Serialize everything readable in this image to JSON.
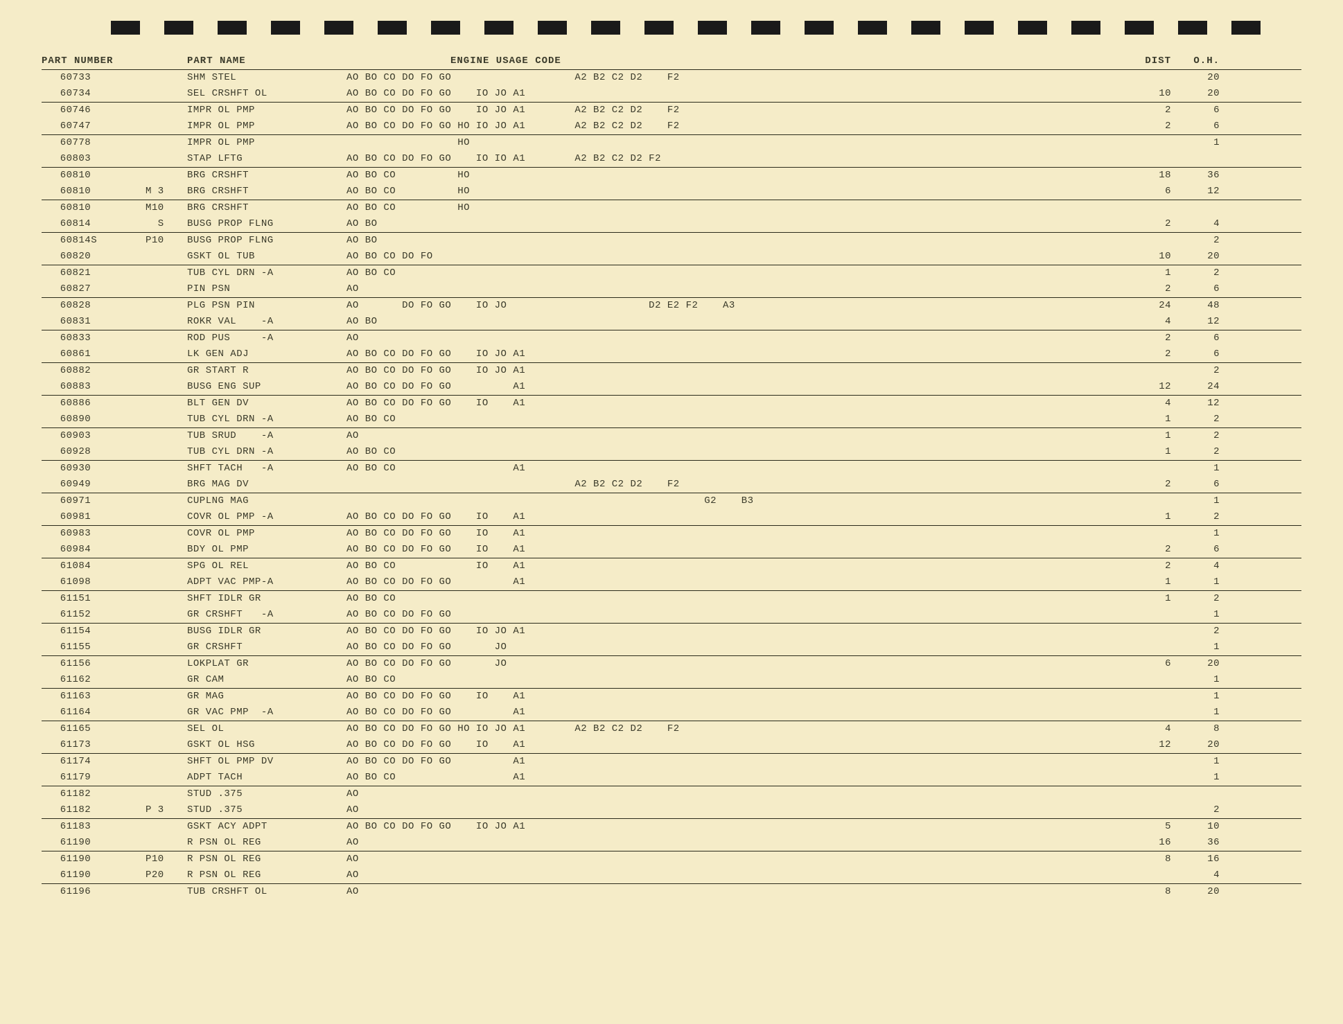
{
  "header": {
    "part_number": "PART NUMBER",
    "part_name": "PART NAME",
    "engine_usage": "ENGINE  USAGE  CODE",
    "dist": "DIST",
    "oh": "O.H."
  },
  "rows": [
    {
      "part": "60733",
      "suffix": "",
      "name": "SHM STEL",
      "codes": "AO BO CO DO FO GO                    A2 B2 C2 D2    F2",
      "dist": "",
      "oh": "20",
      "border": false
    },
    {
      "part": "60734",
      "suffix": "",
      "name": "SEL CRSHFT OL",
      "codes": "AO BO CO DO FO GO    IO JO A1",
      "dist": "10",
      "oh": "20",
      "border": true
    },
    {
      "part": "60746",
      "suffix": "",
      "name": "IMPR OL PMP",
      "codes": "AO BO CO DO FO GO    IO JO A1        A2 B2 C2 D2    F2",
      "dist": "2",
      "oh": "6",
      "border": false
    },
    {
      "part": "60747",
      "suffix": "",
      "name": "IMPR OL PMP",
      "codes": "AO BO CO DO FO GO HO IO JO A1        A2 B2 C2 D2    F2",
      "dist": "2",
      "oh": "6",
      "border": true
    },
    {
      "part": "60778",
      "suffix": "",
      "name": "IMPR OL PMP",
      "codes": "                  HO",
      "dist": "",
      "oh": "1",
      "border": false
    },
    {
      "part": "60803",
      "suffix": "",
      "name": "STAP LFTG",
      "codes": "AO BO CO DO FO GO    IO IO A1        A2 B2 C2 D2 F2",
      "dist": "",
      "oh": "",
      "border": true
    },
    {
      "part": "60810",
      "suffix": "",
      "name": "BRG CRSHFT",
      "codes": "AO BO CO          HO",
      "dist": "18",
      "oh": "36",
      "border": false
    },
    {
      "part": "60810",
      "suffix": "M 3",
      "name": "BRG CRSHFT",
      "codes": "AO BO CO          HO",
      "dist": "6",
      "oh": "12",
      "border": true
    },
    {
      "part": "60810",
      "suffix": "M10",
      "name": "BRG CRSHFT",
      "codes": "AO BO CO          HO",
      "dist": "",
      "oh": "",
      "border": false
    },
    {
      "part": "60814",
      "suffix": "  S",
      "name": "BUSG PROP FLNG",
      "codes": "AO BO",
      "dist": "2",
      "oh": "4",
      "border": true
    },
    {
      "part": "60814S",
      "suffix": "P10",
      "name": "BUSG PROP FLNG",
      "codes": "AO BO",
      "dist": "",
      "oh": "2",
      "border": false
    },
    {
      "part": "60820",
      "suffix": "",
      "name": "GSKT OL TUB",
      "codes": "AO BO CO DO FO",
      "dist": "10",
      "oh": "20",
      "border": true
    },
    {
      "part": "60821",
      "suffix": "",
      "name": "TUB CYL DRN -A",
      "codes": "AO BO CO",
      "dist": "1",
      "oh": "2",
      "border": false
    },
    {
      "part": "60827",
      "suffix": "",
      "name": "PIN PSN",
      "codes": "AO",
      "dist": "2",
      "oh": "6",
      "border": true
    },
    {
      "part": "60828",
      "suffix": "",
      "name": "PLG PSN PIN",
      "codes": "AO       DO FO GO    IO JO                       D2 E2 F2    A3",
      "dist": "24",
      "oh": "48",
      "border": false
    },
    {
      "part": "60831",
      "suffix": "",
      "name": "ROKR VAL    -A",
      "codes": "AO BO",
      "dist": "4",
      "oh": "12",
      "border": true
    },
    {
      "part": "60833",
      "suffix": "",
      "name": "ROD PUS     -A",
      "codes": "AO",
      "dist": "2",
      "oh": "6",
      "border": false
    },
    {
      "part": "60861",
      "suffix": "",
      "name": "LK GEN ADJ",
      "codes": "AO BO CO DO FO GO    IO JO A1",
      "dist": "2",
      "oh": "6",
      "border": true
    },
    {
      "part": "60882",
      "suffix": "",
      "name": "GR START R",
      "codes": "AO BO CO DO FO GO    IO JO A1",
      "dist": "",
      "oh": "2",
      "border": false
    },
    {
      "part": "60883",
      "suffix": "",
      "name": "BUSG ENG SUP",
      "codes": "AO BO CO DO FO GO          A1",
      "dist": "12",
      "oh": "24",
      "border": true
    },
    {
      "part": "60886",
      "suffix": "",
      "name": "BLT GEN DV",
      "codes": "AO BO CO DO FO GO    IO    A1",
      "dist": "4",
      "oh": "12",
      "border": false
    },
    {
      "part": "60890",
      "suffix": "",
      "name": "TUB CYL DRN -A",
      "codes": "AO BO CO",
      "dist": "1",
      "oh": "2",
      "border": true
    },
    {
      "part": "60903",
      "suffix": "",
      "name": "TUB SRUD    -A",
      "codes": "AO",
      "dist": "1",
      "oh": "2",
      "border": false
    },
    {
      "part": "60928",
      "suffix": "",
      "name": "TUB CYL DRN -A",
      "codes": "AO BO CO",
      "dist": "1",
      "oh": "2",
      "border": true
    },
    {
      "part": "60930",
      "suffix": "",
      "name": "SHFT TACH   -A",
      "codes": "AO BO CO                   A1",
      "dist": "",
      "oh": "1",
      "border": false
    },
    {
      "part": "60949",
      "suffix": "",
      "name": "BRG MAG DV",
      "codes": "                                     A2 B2 C2 D2    F2",
      "dist": "2",
      "oh": "6",
      "border": true
    },
    {
      "part": "60971",
      "suffix": "",
      "name": "CUPLNG MAG",
      "codes": "                                                          G2    B3",
      "dist": "",
      "oh": "1",
      "border": false
    },
    {
      "part": "60981",
      "suffix": "",
      "name": "COVR OL PMP -A",
      "codes": "AO BO CO DO FO GO    IO    A1",
      "dist": "1",
      "oh": "2",
      "border": true
    },
    {
      "part": "60983",
      "suffix": "",
      "name": "COVR OL PMP",
      "codes": "AO BO CO DO FO GO    IO    A1",
      "dist": "",
      "oh": "1",
      "border": false
    },
    {
      "part": "60984",
      "suffix": "",
      "name": "BDY OL PMP",
      "codes": "AO BO CO DO FO GO    IO    A1",
      "dist": "2",
      "oh": "6",
      "border": true
    },
    {
      "part": "61084",
      "suffix": "",
      "name": "SPG OL REL",
      "codes": "AO BO CO             IO    A1",
      "dist": "2",
      "oh": "4",
      "border": false
    },
    {
      "part": "61098",
      "suffix": "",
      "name": "ADPT VAC PMP-A",
      "codes": "AO BO CO DO FO GO          A1",
      "dist": "1",
      "oh": "1",
      "border": true
    },
    {
      "part": "61151",
      "suffix": "",
      "name": "SHFT IDLR GR",
      "codes": "AO BO CO",
      "dist": "1",
      "oh": "2",
      "border": false
    },
    {
      "part": "61152",
      "suffix": "",
      "name": "GR CRSHFT   -A",
      "codes": "AO BO CO DO FO GO",
      "dist": "",
      "oh": "1",
      "border": true
    },
    {
      "part": "61154",
      "suffix": "",
      "name": "BUSG IDLR GR",
      "codes": "AO BO CO DO FO GO    IO JO A1",
      "dist": "",
      "oh": "2",
      "border": false
    },
    {
      "part": "61155",
      "suffix": "",
      "name": "GR CRSHFT",
      "codes": "AO BO CO DO FO GO       JO",
      "dist": "",
      "oh": "1",
      "border": true
    },
    {
      "part": "61156",
      "suffix": "",
      "name": "LOKPLAT GR",
      "codes": "AO BO CO DO FO GO       JO",
      "dist": "6",
      "oh": "20",
      "border": false
    },
    {
      "part": "61162",
      "suffix": "",
      "name": "GR CAM",
      "codes": "AO BO CO",
      "dist": "",
      "oh": "1",
      "border": true
    },
    {
      "part": "61163",
      "suffix": "",
      "name": "GR MAG",
      "codes": "AO BO CO DO FO GO    IO    A1",
      "dist": "",
      "oh": "1",
      "border": false
    },
    {
      "part": "61164",
      "suffix": "",
      "name": "GR VAC PMP  -A",
      "codes": "AO BO CO DO FO GO          A1",
      "dist": "",
      "oh": "1",
      "border": true
    },
    {
      "part": "61165",
      "suffix": "",
      "name": "SEL OL",
      "codes": "AO BO CO DO FO GO HO IO JO A1        A2 B2 C2 D2    F2",
      "dist": "4",
      "oh": "8",
      "border": false
    },
    {
      "part": "61173",
      "suffix": "",
      "name": "GSKT OL HSG",
      "codes": "AO BO CO DO FO GO    IO    A1",
      "dist": "12",
      "oh": "20",
      "border": true
    },
    {
      "part": "61174",
      "suffix": "",
      "name": "SHFT OL PMP DV",
      "codes": "AO BO CO DO FO GO          A1",
      "dist": "",
      "oh": "1",
      "border": false
    },
    {
      "part": "61179",
      "suffix": "",
      "name": "ADPT TACH",
      "codes": "AO BO CO                   A1",
      "dist": "",
      "oh": "1",
      "border": true
    },
    {
      "part": "61182",
      "suffix": "",
      "name": "STUD .375",
      "codes": "AO",
      "dist": "",
      "oh": "",
      "border": false
    },
    {
      "part": "61182",
      "suffix": "P 3",
      "name": "STUD .375",
      "codes": "AO",
      "dist": "",
      "oh": "2",
      "border": true
    },
    {
      "part": "61183",
      "suffix": "",
      "name": "GSKT ACY ADPT",
      "codes": "AO BO CO DO FO GO    IO JO A1",
      "dist": "5",
      "oh": "10",
      "border": false
    },
    {
      "part": "61190",
      "suffix": "",
      "name": "R PSN OL REG",
      "codes": "AO",
      "dist": "16",
      "oh": "36",
      "border": true
    },
    {
      "part": "61190",
      "suffix": "P10",
      "name": "R PSN OL REG",
      "codes": "AO",
      "dist": "8",
      "oh": "16",
      "border": false
    },
    {
      "part": "61190",
      "suffix": "P20",
      "name": "R PSN OL REG",
      "codes": "AO",
      "dist": "",
      "oh": "4",
      "border": true
    },
    {
      "part": "61196",
      "suffix": "",
      "name": "TUB CRSHFT OL",
      "codes": "AO",
      "dist": "8",
      "oh": "20",
      "border": false
    }
  ]
}
